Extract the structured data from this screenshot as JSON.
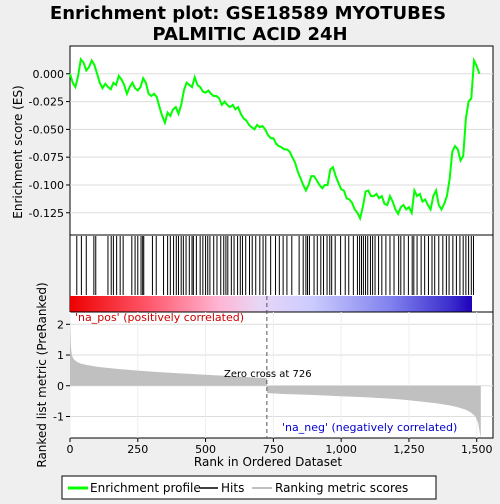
{
  "title_line1": "Enrichment plot: GSE18589 MYOTUBES",
  "title_line2": "PALMITIC ACID 24H",
  "chart_data": [
    {
      "type": "line",
      "panel": "enrichment-score",
      "ylabel": "Enrichment score (ES)",
      "ylim": [
        -0.145,
        0.025
      ],
      "yticks": [
        0.0,
        -0.025,
        -0.05,
        -0.075,
        -0.1,
        -0.125
      ],
      "ytick_labels": [
        "0.000",
        "-0.025",
        "-0.050",
        "-0.075",
        "-0.100",
        "-0.125"
      ],
      "xlim": [
        0,
        1560
      ],
      "grid": true,
      "series": [
        {
          "name": "Enrichment profile",
          "color": "#00ff00",
          "x": [
            0,
            10,
            20,
            30,
            40,
            50,
            60,
            70,
            80,
            90,
            100,
            110,
            120,
            130,
            140,
            150,
            160,
            170,
            180,
            190,
            200,
            210,
            220,
            230,
            240,
            250,
            260,
            270,
            280,
            290,
            300,
            310,
            320,
            330,
            340,
            350,
            360,
            370,
            380,
            390,
            400,
            410,
            420,
            430,
            440,
            450,
            460,
            470,
            480,
            490,
            500,
            510,
            520,
            530,
            540,
            550,
            560,
            570,
            580,
            590,
            600,
            610,
            620,
            630,
            640,
            650,
            660,
            670,
            680,
            690,
            700,
            710,
            720,
            730,
            740,
            750,
            760,
            770,
            780,
            790,
            800,
            810,
            820,
            830,
            840,
            850,
            860,
            870,
            880,
            890,
            900,
            910,
            920,
            930,
            940,
            950,
            960,
            970,
            980,
            990,
            1000,
            1010,
            1020,
            1030,
            1040,
            1050,
            1060,
            1070,
            1080,
            1090,
            1100,
            1110,
            1120,
            1130,
            1140,
            1150,
            1160,
            1170,
            1180,
            1190,
            1200,
            1210,
            1220,
            1230,
            1240,
            1250,
            1260,
            1270,
            1280,
            1290,
            1300,
            1310,
            1320,
            1330,
            1340,
            1350,
            1360,
            1370,
            1380,
            1390,
            1400,
            1410,
            1420,
            1430,
            1440,
            1450,
            1460,
            1470,
            1480,
            1490,
            1500,
            1510
          ],
          "y": [
            0.0,
            -0.008,
            -0.012,
            -0.002,
            0.013,
            0.01,
            0.003,
            0.006,
            0.012,
            0.008,
            0.0,
            -0.008,
            -0.013,
            -0.009,
            -0.012,
            -0.014,
            -0.008,
            -0.01,
            -0.002,
            -0.005,
            -0.01,
            -0.018,
            -0.012,
            -0.008,
            -0.013,
            -0.015,
            -0.012,
            -0.004,
            -0.008,
            -0.018,
            -0.02,
            -0.018,
            -0.021,
            -0.03,
            -0.038,
            -0.044,
            -0.035,
            -0.038,
            -0.032,
            -0.03,
            -0.036,
            -0.028,
            -0.015,
            -0.008,
            -0.01,
            -0.012,
            -0.003,
            -0.01,
            -0.012,
            -0.016,
            -0.017,
            -0.015,
            -0.018,
            -0.02,
            -0.02,
            -0.022,
            -0.028,
            -0.025,
            -0.028,
            -0.03,
            -0.028,
            -0.032,
            -0.03,
            -0.036,
            -0.04,
            -0.042,
            -0.046,
            -0.048,
            -0.05,
            -0.046,
            -0.048,
            -0.047,
            -0.05,
            -0.055,
            -0.058,
            -0.058,
            -0.063,
            -0.065,
            -0.066,
            -0.068,
            -0.068,
            -0.07,
            -0.075,
            -0.08,
            -0.088,
            -0.094,
            -0.1,
            -0.105,
            -0.1,
            -0.092,
            -0.092,
            -0.096,
            -0.1,
            -0.103,
            -0.1,
            -0.1,
            -0.086,
            -0.084,
            -0.092,
            -0.098,
            -0.104,
            -0.105,
            -0.112,
            -0.113,
            -0.116,
            -0.122,
            -0.125,
            -0.13,
            -0.12,
            -0.106,
            -0.105,
            -0.11,
            -0.11,
            -0.108,
            -0.112,
            -0.11,
            -0.117,
            -0.118,
            -0.11,
            -0.115,
            -0.122,
            -0.126,
            -0.12,
            -0.118,
            -0.122,
            -0.12,
            -0.125,
            -0.105,
            -0.11,
            -0.108,
            -0.115,
            -0.113,
            -0.118,
            -0.122,
            -0.11,
            -0.105,
            -0.118,
            -0.122,
            -0.117,
            -0.11,
            -0.095,
            -0.07,
            -0.065,
            -0.068,
            -0.078,
            -0.074,
            -0.04,
            -0.025,
            -0.022,
            0.012,
            0.007,
            0.0
          ]
        }
      ]
    },
    {
      "type": "hits",
      "panel": "hits",
      "xlim": [
        0,
        1560
      ],
      "description_note": "",
      "hit_positions": [
        25,
        42,
        60,
        88,
        95,
        140,
        152,
        160,
        172,
        185,
        196,
        228,
        240,
        250,
        262,
        268,
        272,
        304,
        318,
        345,
        360,
        370,
        382,
        392,
        400,
        410,
        418,
        428,
        440,
        450,
        455,
        466,
        480,
        490,
        500,
        508,
        516,
        530,
        542,
        556,
        567,
        575,
        582,
        595,
        605,
        618,
        628,
        636,
        648,
        662,
        672,
        685,
        700,
        712,
        722,
        740,
        758,
        772,
        786,
        800,
        818,
        845,
        860,
        870,
        876,
        883,
        900,
        912,
        925,
        935,
        948,
        958,
        965,
        978,
        998,
        1015,
        1028,
        1045,
        1060,
        1068,
        1075,
        1082,
        1090,
        1098,
        1108,
        1116,
        1125,
        1138,
        1150,
        1165,
        1180,
        1195,
        1212,
        1220,
        1232,
        1248,
        1262,
        1268,
        1280,
        1295,
        1308,
        1322,
        1335,
        1345,
        1360,
        1375,
        1388,
        1398,
        1412,
        1425,
        1438,
        1450,
        1460,
        1470,
        1480,
        1488
      ]
    },
    {
      "type": "area",
      "panel": "ranked-list-metric",
      "ylabel": "Ranked list metric (PreRanked)",
      "xlabel": "Rank in Ordered Dataset",
      "ylim": [
        -1.7,
        2.4
      ],
      "yticks": [
        2,
        1,
        0,
        -1
      ],
      "xlim": [
        0,
        1560
      ],
      "xticks": [
        0,
        250,
        500,
        750,
        1000,
        1250,
        1500
      ],
      "xtick_labels": [
        "0",
        "250",
        "500",
        "750",
        "1,000",
        "1,250",
        "1,500"
      ],
      "zero_cross": 726,
      "color": "#c0c0c0",
      "x": [
        0,
        3,
        6,
        10,
        15,
        25,
        40,
        60,
        100,
        150,
        200,
        300,
        400,
        500,
        600,
        700,
        726,
        727,
        800,
        900,
        1000,
        1100,
        1200,
        1250,
        1300,
        1350,
        1400,
        1430,
        1460,
        1480,
        1495,
        1505,
        1510,
        1515
      ],
      "values": [
        2.2,
        1.3,
        1.05,
        0.92,
        0.85,
        0.78,
        0.72,
        0.68,
        0.62,
        0.57,
        0.53,
        0.46,
        0.41,
        0.36,
        0.31,
        0.26,
        0.25,
        -0.24,
        -0.27,
        -0.3,
        -0.34,
        -0.38,
        -0.43,
        -0.47,
        -0.52,
        -0.57,
        -0.64,
        -0.7,
        -0.78,
        -0.88,
        -1.0,
        -1.2,
        -1.45,
        -1.7
      ]
    }
  ],
  "annotations": {
    "pos_label": "'na_pos' (positively correlated)",
    "neg_label": "'na_neg' (negatively correlated)",
    "zero_cross_label": "Zero cross at 726"
  },
  "legend": {
    "items": [
      {
        "label": "Enrichment profile",
        "color": "#00ff00"
      },
      {
        "label": "Hits",
        "color": "#000000"
      },
      {
        "label": "Ranking metric scores",
        "color": "#c0c0c0"
      }
    ]
  },
  "colors": {
    "pos_text": "#cc0000",
    "neg_text": "#0000cc",
    "plot_bg": "#ffffff",
    "page_bg": "#efefef"
  }
}
